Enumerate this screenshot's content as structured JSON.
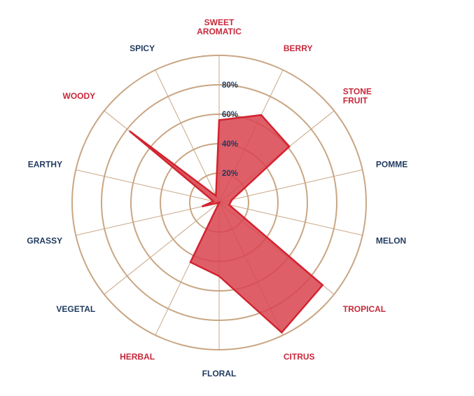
{
  "chart_data": {
    "type": "radar",
    "title": "",
    "axes": [
      "SWEET AROMATIC",
      "BERRY",
      "STONE FRUIT",
      "POMME",
      "MELON",
      "TROPICAL",
      "CITRUS",
      "FLORAL",
      "HERBAL",
      "VEGETAL",
      "GRASSY",
      "EARTHY",
      "WOODY",
      "SPICY"
    ],
    "axis_label_lines": [
      [
        "SWEET",
        "AROMATIC"
      ],
      [
        "BERRY"
      ],
      [
        "STONE",
        "FRUIT"
      ],
      [
        "POMME"
      ],
      [
        "MELON"
      ],
      [
        "TROPICAL"
      ],
      [
        "CITRUS"
      ],
      [
        "FLORAL"
      ],
      [
        "HERBAL"
      ],
      [
        "VEGETAL"
      ],
      [
        "GRASSY"
      ],
      [
        "EARTHY"
      ],
      [
        "WOODY"
      ],
      [
        "SPICY"
      ]
    ],
    "axis_label_colors": [
      "#c8283a",
      "#c8283a",
      "#c8283a",
      "#1f3a5f",
      "#1f3a5f",
      "#c8283a",
      "#c8283a",
      "#1f3a5f",
      "#c8283a",
      "#1f3a5f",
      "#1f3a5f",
      "#1f3a5f",
      "#c8283a",
      "#1f3a5f"
    ],
    "series": [
      {
        "values": [
          56,
          66,
          61,
          9,
          7,
          90,
          98,
          50,
          45,
          0,
          12,
          4,
          78,
          5
        ]
      }
    ],
    "rings": [
      20,
      40,
      60,
      80
    ],
    "ring_labels": [
      "20%",
      "40%",
      "60%",
      "80%"
    ],
    "rmax": 100,
    "colors": {
      "fill": "#d9434f",
      "stroke": "#d2232f",
      "grid": "#c9a684",
      "accent_label": "#c8283a",
      "dark_label": "#1f3a5f"
    }
  }
}
